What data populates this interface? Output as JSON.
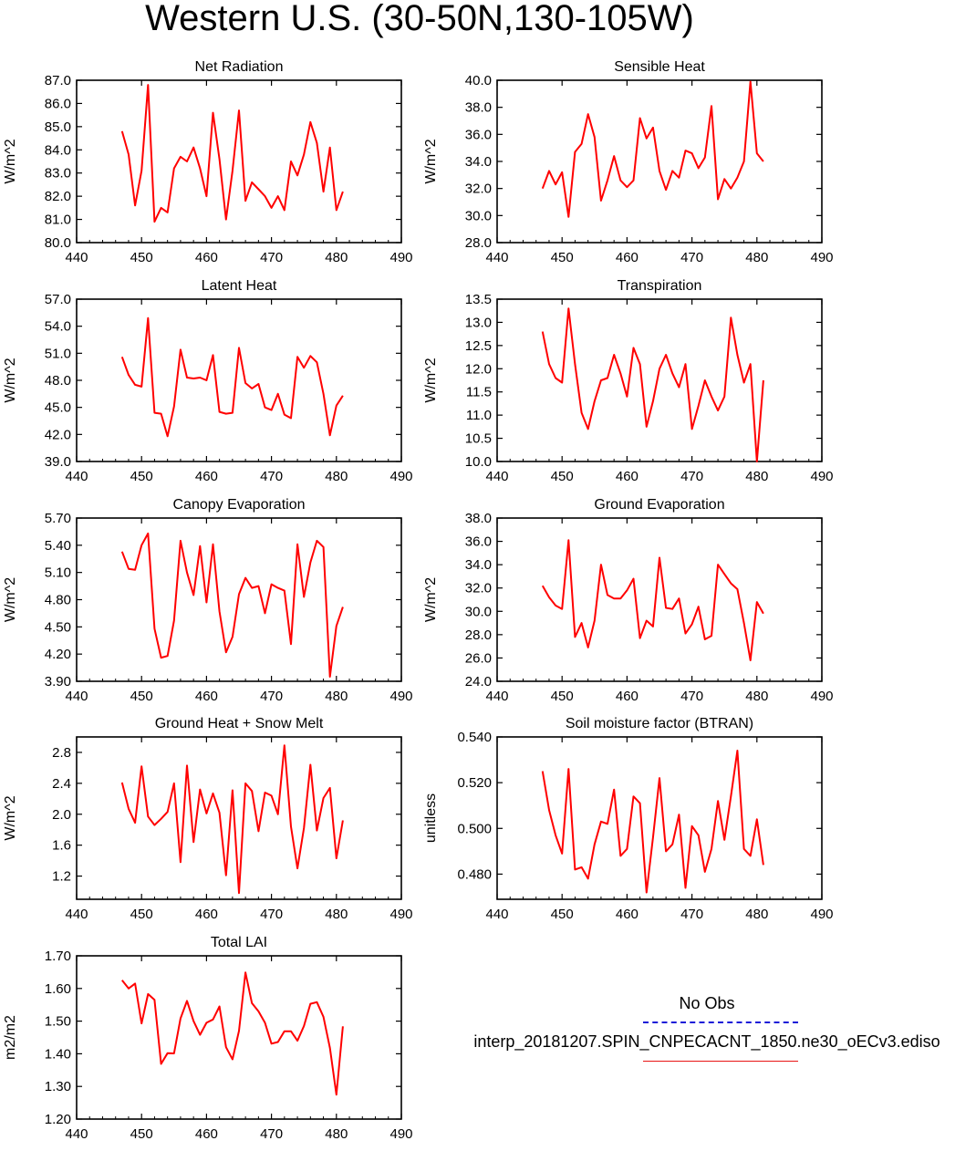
{
  "title": "Western U.S. (30-50N,130-105W)",
  "colors": {
    "model": "#ff0000",
    "obs": "#1a1ad8",
    "axis": "#000000"
  },
  "legend": {
    "obs_label": "No Obs",
    "case_label": "interp_20181207.SPIN_CNPECACNT_1850.ne30_oECv3.ediso"
  },
  "chart_data": [
    {
      "type": "line",
      "title": "Net Radiation",
      "ylabel": "W/m^2",
      "xlim": [
        440,
        490
      ],
      "ylim": [
        80.0,
        87.0
      ],
      "x_ticks": [
        "440",
        "450",
        "460",
        "470",
        "480",
        "490"
      ],
      "y_ticks": [
        "80.0",
        "81.0",
        "82.0",
        "83.0",
        "84.0",
        "85.0",
        "86.0",
        "87.0"
      ],
      "x": [
        447,
        448,
        449,
        450,
        451,
        452,
        453,
        454,
        455,
        456,
        457,
        458,
        459,
        460,
        461,
        462,
        463,
        464,
        465,
        466,
        467,
        468,
        469,
        470,
        471,
        472,
        473,
        474,
        475,
        476,
        477,
        478,
        479,
        480,
        481
      ],
      "values": [
        84.8,
        83.8,
        81.6,
        83.1,
        86.8,
        80.9,
        81.5,
        81.3,
        83.2,
        83.7,
        83.5,
        84.1,
        83.2,
        82.0,
        85.6,
        83.6,
        81.0,
        83.1,
        85.7,
        81.8,
        82.6,
        82.3,
        82.0,
        81.5,
        82.0,
        81.4,
        83.5,
        82.9,
        83.8,
        85.2,
        84.3,
        82.2,
        84.1,
        81.4,
        82.2
      ]
    },
    {
      "type": "line",
      "title": "Sensible Heat",
      "ylabel": "W/m^2",
      "xlim": [
        440,
        490
      ],
      "ylim": [
        28.0,
        40.0
      ],
      "x_ticks": [
        "440",
        "450",
        "460",
        "470",
        "480",
        "490"
      ],
      "y_ticks": [
        "28.0",
        "30.0",
        "32.0",
        "34.0",
        "36.0",
        "38.0",
        "40.0"
      ],
      "x": [
        447,
        448,
        449,
        450,
        451,
        452,
        453,
        454,
        455,
        456,
        457,
        458,
        459,
        460,
        461,
        462,
        463,
        464,
        465,
        466,
        467,
        468,
        469,
        470,
        471,
        472,
        473,
        474,
        475,
        476,
        477,
        478,
        479,
        480,
        481
      ],
      "values": [
        32.0,
        33.3,
        32.3,
        33.2,
        29.9,
        34.7,
        35.3,
        37.5,
        35.8,
        31.1,
        32.6,
        34.4,
        32.6,
        32.1,
        32.6,
        37.2,
        35.7,
        36.5,
        33.3,
        31.9,
        33.3,
        32.8,
        34.8,
        34.6,
        33.5,
        34.3,
        38.1,
        31.2,
        32.7,
        32.0,
        32.8,
        34.0,
        39.9,
        34.6,
        34.0
      ]
    },
    {
      "type": "line",
      "title": "Latent Heat",
      "ylabel": "W/m^2",
      "xlim": [
        440,
        490
      ],
      "ylim": [
        39.0,
        57.0
      ],
      "x_ticks": [
        "440",
        "450",
        "460",
        "470",
        "480",
        "490"
      ],
      "y_ticks": [
        "39.0",
        "42.0",
        "45.0",
        "48.0",
        "51.0",
        "54.0",
        "57.0"
      ],
      "x": [
        447,
        448,
        449,
        450,
        451,
        452,
        453,
        454,
        455,
        456,
        457,
        458,
        459,
        460,
        461,
        462,
        463,
        464,
        465,
        466,
        467,
        468,
        469,
        470,
        471,
        472,
        473,
        474,
        475,
        476,
        477,
        478,
        479,
        480,
        481
      ],
      "values": [
        50.6,
        48.6,
        47.5,
        47.3,
        54.9,
        44.4,
        44.3,
        41.8,
        45.1,
        51.4,
        48.3,
        48.2,
        48.3,
        48.0,
        50.8,
        44.5,
        44.3,
        44.4,
        51.6,
        47.7,
        47.1,
        47.6,
        45.0,
        44.7,
        46.5,
        44.2,
        43.8,
        50.6,
        49.4,
        50.7,
        50.0,
        46.5,
        41.9,
        45.2,
        46.3
      ]
    },
    {
      "type": "line",
      "title": "Transpiration",
      "ylabel": "W/m^2",
      "xlim": [
        440,
        490
      ],
      "ylim": [
        10.0,
        13.5
      ],
      "x_ticks": [
        "440",
        "450",
        "460",
        "470",
        "480",
        "490"
      ],
      "y_ticks": [
        "10.0",
        "10.5",
        "11.0",
        "11.5",
        "12.0",
        "12.5",
        "13.0",
        "13.5"
      ],
      "x": [
        447,
        448,
        449,
        450,
        451,
        452,
        453,
        454,
        455,
        456,
        457,
        458,
        459,
        460,
        461,
        462,
        463,
        464,
        465,
        466,
        467,
        468,
        469,
        470,
        471,
        472,
        473,
        474,
        475,
        476,
        477,
        478,
        479,
        480,
        481
      ],
      "values": [
        12.8,
        12.1,
        11.8,
        11.7,
        13.3,
        12.1,
        11.05,
        10.7,
        11.3,
        11.75,
        11.8,
        12.3,
        11.9,
        11.4,
        12.45,
        12.1,
        10.75,
        11.3,
        12.0,
        12.3,
        11.9,
        11.6,
        12.1,
        10.7,
        11.2,
        11.75,
        11.4,
        11.1,
        11.4,
        13.1,
        12.3,
        11.7,
        12.1,
        10.0,
        11.75
      ]
    },
    {
      "type": "line",
      "title": "Canopy Evaporation",
      "ylabel": "W/m^2",
      "xlim": [
        440,
        490
      ],
      "ylim": [
        3.9,
        5.7
      ],
      "x_ticks": [
        "440",
        "450",
        "460",
        "470",
        "480",
        "490"
      ],
      "y_ticks": [
        "3.90",
        "4.20",
        "4.50",
        "4.80",
        "5.10",
        "5.40",
        "5.70"
      ],
      "x": [
        447,
        448,
        449,
        450,
        451,
        452,
        453,
        454,
        455,
        456,
        457,
        458,
        459,
        460,
        461,
        462,
        463,
        464,
        465,
        466,
        467,
        468,
        469,
        470,
        471,
        472,
        473,
        474,
        475,
        476,
        477,
        478,
        479,
        480,
        481
      ],
      "values": [
        5.33,
        5.14,
        5.13,
        5.4,
        5.53,
        4.48,
        4.16,
        4.18,
        4.57,
        5.45,
        5.1,
        4.85,
        5.39,
        4.77,
        5.41,
        4.67,
        4.22,
        4.39,
        4.86,
        5.04,
        4.93,
        4.95,
        4.65,
        4.97,
        4.93,
        4.9,
        4.31,
        5.41,
        4.83,
        5.21,
        5.45,
        5.38,
        3.95,
        4.51,
        4.72
      ]
    },
    {
      "type": "line",
      "title": "Ground Evaporation",
      "ylabel": "W/m^2",
      "xlim": [
        440,
        490
      ],
      "ylim": [
        24.0,
        38.0
      ],
      "x_ticks": [
        "440",
        "450",
        "460",
        "470",
        "480",
        "490"
      ],
      "y_ticks": [
        "24.0",
        "26.0",
        "28.0",
        "30.0",
        "32.0",
        "34.0",
        "36.0",
        "38.0"
      ],
      "x": [
        447,
        448,
        449,
        450,
        451,
        452,
        453,
        454,
        455,
        456,
        457,
        458,
        459,
        460,
        461,
        462,
        463,
        464,
        465,
        466,
        467,
        468,
        469,
        470,
        471,
        472,
        473,
        474,
        475,
        476,
        477,
        478,
        479,
        480,
        481
      ],
      "values": [
        32.2,
        31.2,
        30.5,
        30.2,
        36.1,
        27.8,
        29.0,
        26.9,
        29.2,
        34.0,
        31.4,
        31.1,
        31.1,
        31.8,
        32.8,
        27.7,
        29.2,
        28.7,
        34.6,
        30.3,
        30.2,
        31.1,
        28.1,
        28.9,
        30.4,
        27.6,
        27.9,
        34.0,
        33.2,
        32.4,
        31.9,
        29.0,
        25.8,
        30.8,
        29.8
      ]
    },
    {
      "type": "line",
      "title": "Ground Heat + Snow Melt",
      "ylabel": "W/m^2",
      "xlim": [
        440,
        490
      ],
      "ylim": [
        0.9,
        3.0
      ],
      "x_ticks": [
        "440",
        "450",
        "460",
        "470",
        "480",
        "490"
      ],
      "y_ticks": [
        "1.2",
        "1.6",
        "2.0",
        "2.4",
        "2.8"
      ],
      "y_tick_values": [
        1.2,
        1.6,
        2.0,
        2.4,
        2.8
      ],
      "x": [
        447,
        448,
        449,
        450,
        451,
        452,
        453,
        454,
        455,
        456,
        457,
        458,
        459,
        460,
        461,
        462,
        463,
        464,
        465,
        466,
        467,
        468,
        469,
        470,
        471,
        472,
        473,
        474,
        475,
        476,
        477,
        478,
        479,
        480,
        481
      ],
      "values": [
        2.41,
        2.07,
        1.89,
        2.62,
        1.97,
        1.86,
        1.94,
        2.03,
        2.4,
        1.38,
        2.63,
        1.64,
        2.32,
        2.01,
        2.27,
        2.02,
        1.21,
        2.31,
        0.98,
        2.4,
        2.3,
        1.78,
        2.28,
        2.24,
        2.0,
        2.89,
        1.84,
        1.3,
        1.82,
        2.64,
        1.79,
        2.21,
        2.34,
        1.43,
        1.92
      ]
    },
    {
      "type": "line",
      "title": "Soil moisture factor (BTRAN)",
      "ylabel": "unitless",
      "xlim": [
        440,
        490
      ],
      "ylim": [
        0.469,
        0.54
      ],
      "x_ticks": [
        "440",
        "450",
        "460",
        "470",
        "480",
        "490"
      ],
      "y_ticks": [
        "0.480",
        "0.500",
        "0.520",
        "0.540"
      ],
      "y_tick_values": [
        0.48,
        0.5,
        0.52,
        0.54
      ],
      "x": [
        447,
        448,
        449,
        450,
        451,
        452,
        453,
        454,
        455,
        456,
        457,
        458,
        459,
        460,
        461,
        462,
        463,
        464,
        465,
        466,
        467,
        468,
        469,
        470,
        471,
        472,
        473,
        474,
        475,
        476,
        477,
        478,
        479,
        480,
        481
      ],
      "values": [
        0.525,
        0.508,
        0.497,
        0.489,
        0.526,
        0.482,
        0.483,
        0.478,
        0.493,
        0.503,
        0.502,
        0.517,
        0.488,
        0.491,
        0.514,
        0.511,
        0.472,
        0.496,
        0.522,
        0.49,
        0.493,
        0.506,
        0.474,
        0.501,
        0.497,
        0.481,
        0.491,
        0.512,
        0.495,
        0.514,
        0.534,
        0.491,
        0.488,
        0.504,
        0.484
      ]
    },
    {
      "type": "line",
      "title": "Total LAI",
      "ylabel": "m2/m2",
      "xlim": [
        440,
        490
      ],
      "ylim": [
        1.2,
        1.7
      ],
      "x_ticks": [
        "440",
        "450",
        "460",
        "470",
        "480",
        "490"
      ],
      "y_ticks": [
        "1.20",
        "1.30",
        "1.40",
        "1.50",
        "1.60",
        "1.70"
      ],
      "x": [
        447,
        448,
        449,
        450,
        451,
        452,
        453,
        454,
        455,
        456,
        457,
        458,
        459,
        460,
        461,
        462,
        463,
        464,
        465,
        466,
        467,
        468,
        469,
        470,
        471,
        472,
        473,
        474,
        475,
        476,
        477,
        478,
        479,
        480,
        481
      ],
      "values": [
        1.625,
        1.6,
        1.615,
        1.493,
        1.583,
        1.565,
        1.369,
        1.402,
        1.401,
        1.508,
        1.562,
        1.5,
        1.458,
        1.495,
        1.505,
        1.545,
        1.42,
        1.383,
        1.47,
        1.649,
        1.555,
        1.53,
        1.495,
        1.431,
        1.436,
        1.469,
        1.469,
        1.44,
        1.485,
        1.553,
        1.558,
        1.513,
        1.418,
        1.275,
        1.484
      ]
    }
  ]
}
